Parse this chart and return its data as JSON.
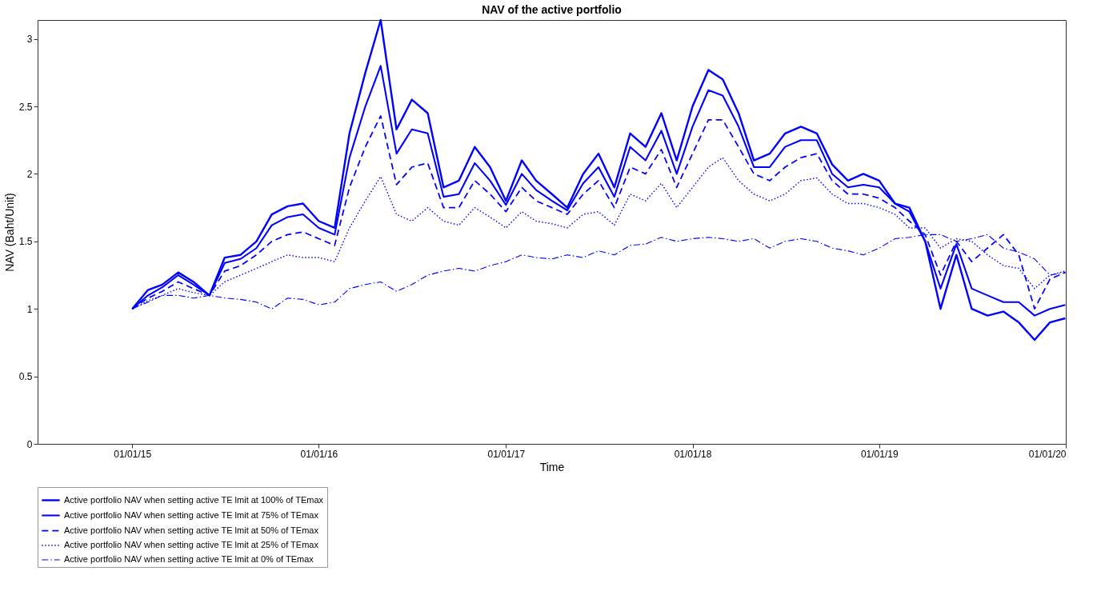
{
  "chart_data": {
    "type": "line",
    "title": "NAV of the active portfolio",
    "xlabel": "Time",
    "ylabel": "NAV (Baht/Unit)",
    "x": [
      "2015-01-01",
      "2015-02-01",
      "2015-03-01",
      "2015-04-01",
      "2015-05-01",
      "2015-06-01",
      "2015-07-01",
      "2015-08-01",
      "2015-09-01",
      "2015-10-01",
      "2015-11-01",
      "2015-12-01",
      "2016-01-01",
      "2016-02-01",
      "2016-03-01",
      "2016-04-01",
      "2016-05-01",
      "2016-06-01",
      "2016-07-01",
      "2016-08-01",
      "2016-09-01",
      "2016-10-01",
      "2016-11-01",
      "2016-12-01",
      "2017-01-01",
      "2017-02-01",
      "2017-03-01",
      "2017-04-01",
      "2017-05-01",
      "2017-06-01",
      "2017-07-01",
      "2017-08-01",
      "2017-09-01",
      "2017-10-01",
      "2017-11-01",
      "2017-12-01",
      "2018-01-01",
      "2018-02-01",
      "2018-03-01",
      "2018-04-01",
      "2018-05-01",
      "2018-06-01",
      "2018-07-01",
      "2018-08-01",
      "2018-09-01",
      "2018-10-01",
      "2018-11-01",
      "2018-12-01",
      "2019-01-01",
      "2019-02-01",
      "2019-03-01",
      "2019-04-01",
      "2019-05-01",
      "2019-06-01",
      "2019-07-01",
      "2019-08-01",
      "2019-09-01",
      "2019-10-01",
      "2019-11-01",
      "2019-12-01",
      "2019-12-31"
    ],
    "series": [
      {
        "name": "Active portfolio NAV when setting active TE lmit at 100% of TEmax",
        "color": "#0000ff",
        "line_style": "solid",
        "values": [
          1.0,
          1.14,
          1.18,
          1.27,
          1.2,
          1.1,
          1.38,
          1.4,
          1.5,
          1.7,
          1.76,
          1.78,
          1.65,
          1.6,
          2.3,
          2.75,
          3.14,
          2.33,
          2.55,
          2.45,
          1.9,
          1.95,
          2.2,
          2.05,
          1.8,
          2.1,
          1.95,
          1.85,
          1.75,
          2.0,
          2.15,
          1.9,
          2.3,
          2.2,
          2.45,
          2.1,
          2.5,
          2.77,
          2.7,
          2.45,
          2.1,
          2.15,
          2.3,
          2.35,
          2.3,
          2.07,
          1.95,
          2.0,
          1.95,
          1.78,
          1.75,
          1.5,
          1.0,
          1.4,
          1.0,
          0.95,
          0.98,
          0.9,
          0.77,
          0.9,
          0.93
        ]
      },
      {
        "name": "Active portfolio NAV when setting active TE lmit at 75% of TEmax",
        "color": "#0000ff",
        "line_style": "solid",
        "values": [
          1.0,
          1.1,
          1.16,
          1.25,
          1.18,
          1.1,
          1.34,
          1.37,
          1.45,
          1.62,
          1.68,
          1.7,
          1.6,
          1.55,
          2.12,
          2.5,
          2.8,
          2.15,
          2.33,
          2.3,
          1.83,
          1.85,
          2.08,
          1.95,
          1.77,
          2.0,
          1.88,
          1.8,
          1.73,
          1.93,
          2.05,
          1.83,
          2.2,
          2.1,
          2.32,
          2.0,
          2.35,
          2.62,
          2.58,
          2.35,
          2.05,
          2.05,
          2.2,
          2.25,
          2.25,
          2.0,
          1.9,
          1.92,
          1.9,
          1.78,
          1.72,
          1.5,
          1.15,
          1.48,
          1.15,
          1.1,
          1.05,
          1.05,
          0.95,
          1.0,
          1.03
        ]
      },
      {
        "name": "Active portfolio NAV when setting active TE lmit at 50% of TEmax",
        "color": "#0000ff",
        "line_style": "dashed",
        "values": [
          1.0,
          1.08,
          1.13,
          1.2,
          1.15,
          1.1,
          1.28,
          1.32,
          1.4,
          1.5,
          1.55,
          1.57,
          1.52,
          1.47,
          1.9,
          2.2,
          2.43,
          1.92,
          2.05,
          2.08,
          1.75,
          1.75,
          1.95,
          1.85,
          1.72,
          1.9,
          1.8,
          1.75,
          1.7,
          1.85,
          1.95,
          1.75,
          2.05,
          2.0,
          2.18,
          1.9,
          2.15,
          2.4,
          2.4,
          2.2,
          2.0,
          1.95,
          2.05,
          2.12,
          2.15,
          1.95,
          1.85,
          1.85,
          1.82,
          1.75,
          1.65,
          1.55,
          1.25,
          1.5,
          1.35,
          1.45,
          1.55,
          1.4,
          1.0,
          1.22,
          1.27
        ]
      },
      {
        "name": "Active portfolio NAV when setting active TE lmit at 25% of TEmax",
        "color": "#0000ff",
        "line_style": "dotted",
        "values": [
          1.0,
          1.06,
          1.1,
          1.15,
          1.12,
          1.1,
          1.2,
          1.25,
          1.3,
          1.35,
          1.4,
          1.38,
          1.38,
          1.35,
          1.6,
          1.8,
          1.98,
          1.7,
          1.65,
          1.75,
          1.65,
          1.62,
          1.75,
          1.68,
          1.6,
          1.72,
          1.65,
          1.63,
          1.6,
          1.7,
          1.72,
          1.62,
          1.85,
          1.8,
          1.93,
          1.75,
          1.9,
          2.05,
          2.12,
          1.95,
          1.85,
          1.8,
          1.85,
          1.95,
          1.97,
          1.85,
          1.78,
          1.78,
          1.75,
          1.7,
          1.6,
          1.6,
          1.45,
          1.52,
          1.5,
          1.4,
          1.32,
          1.3,
          1.15,
          1.25,
          1.28
        ]
      },
      {
        "name": "Active portfolio NAV when setting active TE lmit at 0% of TEmax",
        "color": "#0000ff",
        "line_style": "dashdot",
        "values": [
          1.0,
          1.05,
          1.1,
          1.1,
          1.08,
          1.1,
          1.08,
          1.07,
          1.05,
          1.0,
          1.08,
          1.07,
          1.03,
          1.05,
          1.15,
          1.18,
          1.2,
          1.13,
          1.18,
          1.25,
          1.28,
          1.3,
          1.28,
          1.32,
          1.35,
          1.4,
          1.38,
          1.37,
          1.4,
          1.38,
          1.43,
          1.4,
          1.47,
          1.48,
          1.53,
          1.5,
          1.52,
          1.53,
          1.52,
          1.5,
          1.52,
          1.45,
          1.5,
          1.52,
          1.5,
          1.45,
          1.43,
          1.4,
          1.45,
          1.52,
          1.53,
          1.55,
          1.55,
          1.5,
          1.52,
          1.55,
          1.45,
          1.42,
          1.37,
          1.25,
          1.27
        ]
      }
    ],
    "xlim": [
      "2014-06-30",
      "2020-01-01"
    ],
    "xticks": [
      {
        "value": "2015-01-01",
        "label": "01/01/15"
      },
      {
        "value": "2016-01-01",
        "label": "01/01/16"
      },
      {
        "value": "2017-01-01",
        "label": "01/01/17"
      },
      {
        "value": "2018-01-01",
        "label": "01/01/18"
      },
      {
        "value": "2019-01-01",
        "label": "01/01/19"
      },
      {
        "value": "2020-01-01",
        "label": "01/01/20"
      }
    ],
    "ylim": [
      0,
      3.14
    ],
    "yticks": [
      0,
      0.5,
      1,
      1.5,
      2,
      2.5,
      3
    ],
    "grid": false,
    "legend": "bottom",
    "marker": "none"
  }
}
